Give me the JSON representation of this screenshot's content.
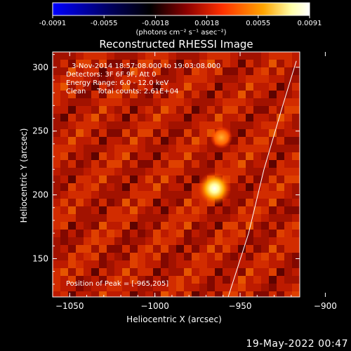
{
  "colorbar": {
    "ticks": [
      "-0.0091",
      "-0.0055",
      "-0.0018",
      "0.0018",
      "0.0055",
      "0.0091"
    ],
    "units": "(photons cm⁻² s⁻¹ asec⁻²)"
  },
  "chart_data": {
    "type": "heatmap",
    "title": "Reconstructed RHESSI Image",
    "xlabel": "Heliocentric X (arcsec)",
    "ylabel": "Heliocentric Y (arcsec)",
    "xlim": [
      -1060,
      -915
    ],
    "ylim": [
      120,
      312
    ],
    "x_ticks": [
      -1050,
      -1000,
      -950,
      -900
    ],
    "y_ticks": [
      150,
      200,
      250,
      300
    ],
    "colorbar_range": [
      -0.0091,
      0.0091
    ],
    "colormap": [
      "#0000ff",
      "#000000",
      "#8b0000",
      "#ff3000",
      "#ffa500",
      "#ffffaa",
      "#ffffff"
    ],
    "peak": {
      "x": -965,
      "y": 205
    },
    "secondary_source": {
      "x": -961,
      "y": 245
    },
    "annotations": [
      "3-Nov-2014 18:57:08.000 to 19:03:08.000",
      "Detectors: 3F 6F 9F, Att 0",
      "Energy Range: 6.0 - 12.0 keV",
      "Clean     Total counts: 2.61E+04"
    ],
    "peak_label": "Position of Peak = [-965,205]",
    "limb": [
      [
        -957,
        120
      ],
      [
        -945,
        170
      ],
      [
        -936,
        220
      ],
      [
        -925,
        270
      ],
      [
        -917,
        305
      ]
    ]
  },
  "footer": {
    "date": "19-May-2022 00:47"
  }
}
